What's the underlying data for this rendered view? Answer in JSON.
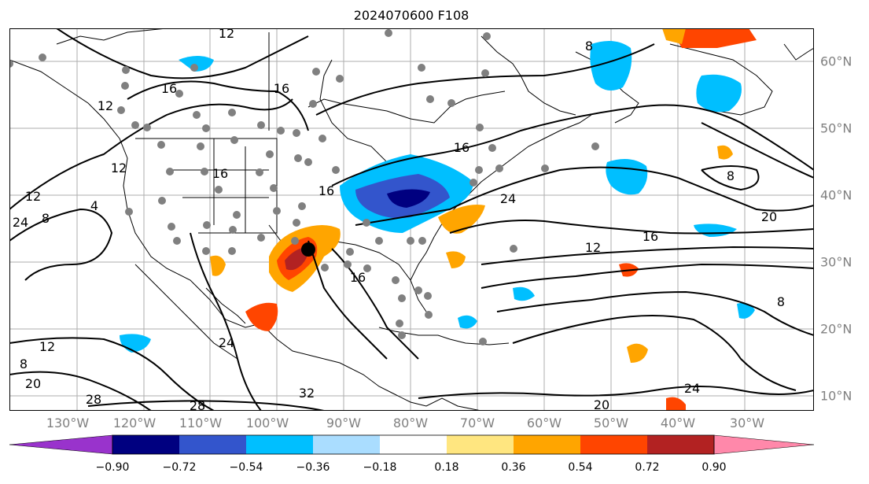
{
  "title": "2024070600 F108",
  "lon_labels": [
    "130°W",
    "120°W",
    "110°W",
    "100°W",
    "90°W",
    "80°W",
    "70°W",
    "60°W",
    "50°W",
    "40°W",
    "30°W"
  ],
  "lat_labels": [
    "60°N",
    "50°N",
    "40°N",
    "30°N",
    "20°N",
    "10°N"
  ],
  "colorbar": {
    "ticks": [
      "−0.90",
      "−0.72",
      "−0.54",
      "−0.36",
      "−0.18",
      "0.18",
      "0.36",
      "0.54",
      "0.72",
      "0.90"
    ],
    "colors": [
      "#9933cc",
      "#000080",
      "#3355cc",
      "#00bfff",
      "#aaddff",
      "#ffffff",
      "#ffe680",
      "#ffa500",
      "#ff4500",
      "#b22222",
      "#ff88aa"
    ]
  },
  "contour_labels": [
    "12",
    "16",
    "16",
    "12",
    "8",
    "12",
    "4",
    "16",
    "24",
    "16",
    "16",
    "24",
    "20",
    "16",
    "12",
    "8",
    "12",
    "8",
    "20",
    "28",
    "28",
    "32",
    "24",
    "16",
    "20",
    "24",
    "8",
    "12",
    "8"
  ],
  "colors": {
    "contour": "#000000",
    "dot": "#808080",
    "marker": "#000000",
    "grid": "#999999",
    "map_border": "#000000"
  }
}
